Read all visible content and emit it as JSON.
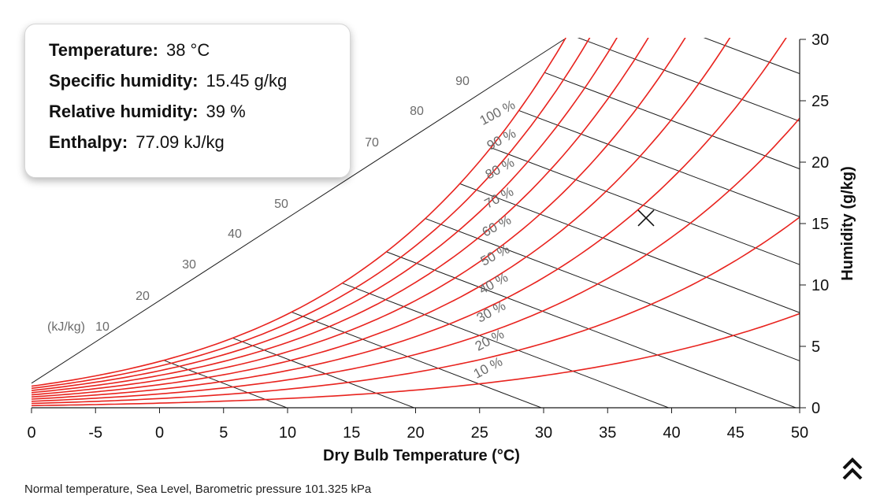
{
  "readout": {
    "temperature": {
      "label": "Temperature:",
      "value": "38 °C"
    },
    "specific_humidity": {
      "label": "Specific humidity:",
      "value": "15.45 g/kg"
    },
    "relative_humidity": {
      "label": "Relative humidity:",
      "value": "39 %"
    },
    "enthalpy": {
      "label": "Enthalpy:",
      "value": "77.09 kJ/kg"
    }
  },
  "footer": {
    "note": "Normal temperature, Sea Level, Barometric pressure 101.325 kPa"
  },
  "controls": {
    "collapse_icon": "double-chevron-up-icon"
  },
  "colors": {
    "rh_curve": "#e8231e",
    "enthalpy_line": "#1a1a1a",
    "axis": "#1a1a1a",
    "label_gray": "#6b6b6b"
  },
  "chart_data": {
    "type": "line",
    "chart_kind": "psychrometric",
    "xlabel": "Dry Bulb Temperature (°C)",
    "ylabel": "Humidity (g/kg)",
    "x_tick_labels": [
      "0",
      "-5",
      "0",
      "5",
      "10",
      "15",
      "20",
      "25",
      "30",
      "35",
      "40",
      "45",
      "50"
    ],
    "xlim": [
      -10,
      50
    ],
    "ylim": [
      0,
      30
    ],
    "y_ticks": [
      0,
      5,
      10,
      15,
      20,
      25,
      30
    ],
    "y_axis_side": "right",
    "pressure_kpa": 101.325,
    "rh_series": [
      {
        "name": "10 %",
        "rh": 10
      },
      {
        "name": "20 %",
        "rh": 20
      },
      {
        "name": "30 %",
        "rh": 30
      },
      {
        "name": "40 %",
        "rh": 40
      },
      {
        "name": "50 %",
        "rh": 50
      },
      {
        "name": "60 %",
        "rh": 60
      },
      {
        "name": "70 %",
        "rh": 70
      },
      {
        "name": "80 %",
        "rh": 80
      },
      {
        "name": "90 %",
        "rh": 90
      },
      {
        "name": "100 %",
        "rh": 100
      }
    ],
    "enthalpy_unit_label": "(kJ/kg)",
    "enthalpy_lines": [
      10,
      20,
      30,
      40,
      50,
      60,
      70,
      80,
      90,
      100,
      110,
      120,
      130
    ],
    "enthalpy_labels": [
      "10",
      "20",
      "30",
      "40",
      "50",
      "70",
      "80",
      "90"
    ],
    "enthalpy_labeled_values": [
      10,
      20,
      30,
      40,
      50,
      70,
      80,
      90
    ],
    "marker": {
      "temperature_c": 38,
      "humidity_gkg": 15.45
    },
    "grid": false
  }
}
